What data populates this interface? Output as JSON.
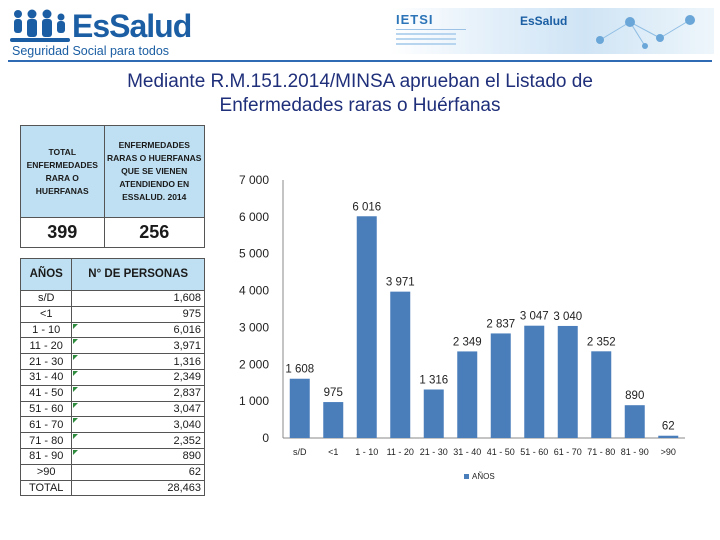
{
  "header": {
    "brand": "EsSalud",
    "tagline": "Seguridad Social para todos",
    "banner_org": "IETSI",
    "banner_brand": "EsSalud"
  },
  "title": {
    "line1": "Mediante R.M.151.2014/MINSA aprueban el Listado de",
    "line2": "Enfermedades raras o Huérfanas"
  },
  "summary_table": {
    "headers": [
      "TOTAL ENFERMEDADES RARA O HUERFANAS",
      "ENFERMEDADES RARAS O HUERFANAS QUE SE VIENEN ATENDIENDO EN ESSALUD. 2014"
    ],
    "values": [
      "399",
      "256"
    ]
  },
  "age_table": {
    "headers": [
      "AÑOS",
      "N° DE PERSONAS"
    ],
    "rows": [
      {
        "age": "s/D",
        "count": "1,608"
      },
      {
        "age": "<1",
        "count": "975"
      },
      {
        "age": "1 - 10",
        "count": "6,016"
      },
      {
        "age": "11 - 20",
        "count": "3,971"
      },
      {
        "age": "21 - 30",
        "count": "1,316"
      },
      {
        "age": "31 - 40",
        "count": "2,349"
      },
      {
        "age": "41 - 50",
        "count": "2,837"
      },
      {
        "age": "51 - 60",
        "count": "3,047"
      },
      {
        "age": "61 - 70",
        "count": "3,040"
      },
      {
        "age": "71 - 80",
        "count": "2,352"
      },
      {
        "age": "81 - 90",
        "count": "890"
      },
      {
        "age": ">90",
        "count": "62"
      }
    ],
    "total_label": "TOTAL",
    "total_value": "28,463"
  },
  "chart_data": {
    "type": "bar",
    "title": "",
    "xlabel": "",
    "ylabel": "",
    "categories": [
      "s/D",
      "<1",
      "1 - 10",
      "11 - 20",
      "21 - 30",
      "31 - 40",
      "41 - 50",
      "51 - 60",
      "61 - 70",
      "71 - 80",
      "81 - 90",
      ">90"
    ],
    "series": [
      {
        "name": "AÑOS",
        "values": [
          1608,
          975,
          6016,
          3971,
          1316,
          2349,
          2837,
          3047,
          3040,
          2352,
          890,
          62
        ]
      }
    ],
    "data_labels": [
      "1 608",
      "975",
      "6 016",
      "3 971",
      "1 316",
      "2 349",
      "2 837",
      "3 047",
      "3 040",
      "2 352",
      "890",
      "62"
    ],
    "ylim": [
      0,
      7000
    ],
    "yticks": [
      0,
      1000,
      2000,
      3000,
      4000,
      5000,
      6000,
      7000
    ],
    "ytick_labels": [
      "0",
      "1 000",
      "2 000",
      "3 000",
      "4 000",
      "5 000",
      "6 000",
      "7 000"
    ],
    "grid": false,
    "legend": "bottom",
    "bar_color": "#4a7ebb"
  }
}
